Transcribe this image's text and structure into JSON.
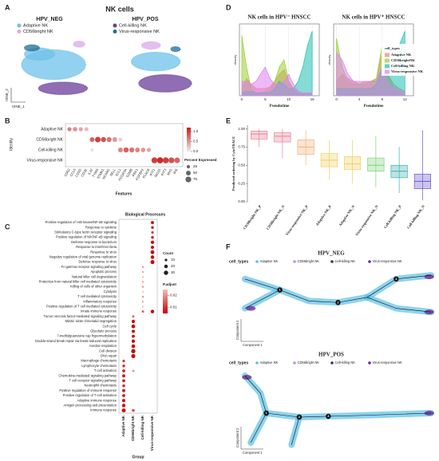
{
  "panel_labels": [
    "A",
    "B",
    "C",
    "D",
    "E",
    "F"
  ],
  "chart_data": [
    {
      "type": "scatter",
      "title": "NK cells",
      "subtitles": [
        "HPV_NEG",
        "HPV_POS"
      ],
      "xlabel": "tSNE_1",
      "ylabel": "tSNE_2",
      "series": [
        {
          "name": "Adaptive NK",
          "color": "#6ec1ea"
        },
        {
          "name": "CD56bright NK",
          "color": "#d9a8ec"
        },
        {
          "name": "Cell-killing NK",
          "color": "#6a3d9a"
        },
        {
          "name": "Virus-responsive NK",
          "color": "#1f6f92"
        }
      ],
      "xlim": [
        0,
        100
      ],
      "ylim": [
        0,
        100
      ],
      "clusters": [
        {
          "panel": 0,
          "series": 0,
          "x": 45,
          "y": 55,
          "rx": 34,
          "ry": 24
        },
        {
          "panel": 0,
          "series": 0,
          "x": 30,
          "y": 72,
          "rx": 16,
          "ry": 10
        },
        {
          "panel": 0,
          "series": 1,
          "x": 72,
          "y": 88,
          "rx": 6,
          "ry": 5
        },
        {
          "panel": 0,
          "series": 2,
          "x": 55,
          "y": 17,
          "rx": 26,
          "ry": 10
        },
        {
          "panel": 0,
          "series": 3,
          "x": 22,
          "y": 82,
          "rx": 8,
          "ry": 5
        },
        {
          "panel": 1,
          "series": 0,
          "x": 45,
          "y": 60,
          "rx": 26,
          "ry": 15
        },
        {
          "panel": 1,
          "series": 1,
          "x": 40,
          "y": 86,
          "rx": 10,
          "ry": 6
        },
        {
          "panel": 1,
          "series": 2,
          "x": 55,
          "y": 25,
          "rx": 28,
          "ry": 14
        },
        {
          "panel": 1,
          "series": 3,
          "x": 66,
          "y": 80,
          "rx": 5,
          "ry": 4
        }
      ]
    },
    {
      "type": "dot",
      "ylabel": "Identity",
      "xlabel": "Features",
      "rows": [
        "Adaptive NK",
        "CD56bright NK",
        "Cell-killing NK",
        "Virus-responsive NK"
      ],
      "features": [
        "CD52",
        "CCL5",
        "CD3D",
        "CD3E",
        "IL32",
        "TYMS",
        "STMN1",
        "NCAM1",
        "SELL",
        "XCL1",
        "FCGR3A",
        "GZMB",
        "PRF1",
        "FGFBP2",
        "PLAC8",
        "IFIT1",
        "ISG15",
        "IFIT3",
        "MX1",
        "IFI6"
      ],
      "points": [
        [
          0,
          0,
          40,
          0.6
        ],
        [
          0,
          1,
          45,
          0.5
        ],
        [
          0,
          2,
          40,
          0.4
        ],
        [
          0,
          3,
          35,
          0.3
        ],
        [
          1,
          4,
          50,
          0.8
        ],
        [
          1,
          5,
          70,
          1.0
        ],
        [
          1,
          6,
          60,
          0.9
        ],
        [
          1,
          7,
          55,
          0.7
        ],
        [
          1,
          8,
          50,
          0.5
        ],
        [
          1,
          9,
          30,
          0.2
        ],
        [
          2,
          4,
          20,
          0.1
        ],
        [
          2,
          9,
          50,
          0.6
        ],
        [
          2,
          10,
          60,
          0.8
        ],
        [
          2,
          11,
          55,
          0.7
        ],
        [
          2,
          12,
          50,
          0.6
        ],
        [
          2,
          13,
          45,
          0.5
        ],
        [
          2,
          14,
          40,
          0.4
        ],
        [
          3,
          15,
          80,
          1.0
        ],
        [
          3,
          16,
          85,
          1.1
        ],
        [
          3,
          17,
          80,
          1.0
        ],
        [
          3,
          18,
          75,
          0.9
        ],
        [
          3,
          19,
          70,
          0.8
        ]
      ],
      "colors": [
        "#eeeeee",
        "#cc1a1a"
      ],
      "clim": [
        0,
        1.2
      ],
      "colorbar_ticks": [
        {
          "value": 0,
          "label": "0.0"
        },
        0.5,
        {
          "value": 1,
          "label": "1.0"
        }
      ],
      "size_legend_title": "Percent Expressed",
      "size_ticks": [
        25,
        50,
        75
      ]
    },
    {
      "type": "dot",
      "title": "Biological Processes",
      "xlabel": "Group",
      "groups": [
        "Adaptive NK",
        "CD56bright NK",
        "Cell-killing NK",
        "Virus-responsive NK"
      ],
      "processes": [
        "Positive regulation of I-κB kinase/NF-κB signaling",
        "Response to cytokine",
        "Stimulatory C-type lectin receptor signaling",
        "Positive regulation of NIK/NF-κB signaling",
        "Defense response to bacterium",
        "Response to interferon-beta",
        "Response to virus",
        "Negative regulation of viral genome replication",
        "Defense response to virus",
        "Fc-gamma receptor signaling pathway",
        "Apoptotic process",
        "Natural killer cell degranulation",
        "Protection from natural killer cell mediated cytotoxicity",
        "Killing of cells of other organism",
        "Cytolysis",
        "T cell mediated cytotoxicity",
        "Inflammatory response",
        "Positive regulation of T cell mediated cytotoxicity",
        "Innate immune response",
        "Tumor necrosis factor-mediated signaling pathway",
        "Mitotic sister chromatid segregation",
        "Cell cycle",
        "Glycolytic process",
        "7-methylguanosine cap hypermethylation",
        "Double-strand break repair via break-induced replication",
        "Aerobic respiration",
        "Cell division",
        "DNA repair",
        "Macrophage chemotaxis",
        "Lymphocyte chemotaxis",
        "T cell activation",
        "Chemokine-mediated signaling pathway",
        "T cell receptor signaling pathway",
        "Neutrophil chemotaxis",
        "Positive regulation of immune response",
        "Positive regulation of T cell activation",
        "Adaptive immune response",
        "Antigen processing and presentation",
        "Immune response"
      ],
      "points": [
        [
          0,
          3,
          15,
          0.006
        ],
        [
          1,
          3,
          12,
          0.008
        ],
        [
          2,
          3,
          10,
          0.01
        ],
        [
          3,
          3,
          12,
          0.008
        ],
        [
          4,
          3,
          18,
          0.006
        ],
        [
          5,
          3,
          16,
          0.006
        ],
        [
          6,
          3,
          22,
          0.005
        ],
        [
          7,
          3,
          20,
          0.005
        ],
        [
          8,
          3,
          25,
          0.005
        ],
        [
          9,
          2,
          6,
          0.02
        ],
        [
          10,
          2,
          5,
          0.022
        ],
        [
          11,
          2,
          4,
          0.024
        ],
        [
          12,
          2,
          5,
          0.022
        ],
        [
          13,
          2,
          6,
          0.02
        ],
        [
          14,
          2,
          4,
          0.024
        ],
        [
          15,
          2,
          6,
          0.02
        ],
        [
          16,
          2,
          5,
          0.022
        ],
        [
          17,
          2,
          4,
          0.024
        ],
        [
          18,
          2,
          8,
          0.015
        ],
        [
          18,
          3,
          20,
          0.005
        ],
        [
          19,
          1,
          8,
          0.015
        ],
        [
          20,
          1,
          18,
          0.005
        ],
        [
          21,
          1,
          22,
          0.005
        ],
        [
          22,
          1,
          16,
          0.006
        ],
        [
          23,
          1,
          14,
          0.006
        ],
        [
          24,
          1,
          18,
          0.005
        ],
        [
          25,
          1,
          20,
          0.005
        ],
        [
          26,
          1,
          28,
          0.005
        ],
        [
          27,
          1,
          26,
          0.005
        ],
        [
          30,
          1,
          8,
          0.02
        ],
        [
          38,
          1,
          12,
          0.012
        ],
        [
          28,
          0,
          10,
          0.01
        ],
        [
          29,
          0,
          12,
          0.009
        ],
        [
          30,
          0,
          14,
          0.008
        ],
        [
          31,
          0,
          16,
          0.008
        ],
        [
          32,
          0,
          14,
          0.008
        ],
        [
          33,
          0,
          12,
          0.009
        ],
        [
          34,
          0,
          16,
          0.008
        ],
        [
          35,
          0,
          14,
          0.008
        ],
        [
          36,
          0,
          18,
          0.007
        ],
        [
          37,
          0,
          20,
          0.007
        ],
        [
          38,
          0,
          24,
          0.006
        ]
      ],
      "colors": [
        "#cc0000",
        "#f6baba"
      ],
      "clim": [
        0.005,
        0.025
      ],
      "size_legend_title": "Count",
      "size_ticks": [
        10,
        20,
        30
      ],
      "color_legend_title": "P.adjust",
      "colorbar_ticks": [
        0.02,
        0.01
      ]
    },
    {
      "type": "area",
      "title": "NK cells in HPV⁻ HNSCC",
      "xlabel": "Pseudotime",
      "ylabel": "density",
      "x": [
        0,
        1,
        2,
        3,
        4,
        5,
        6,
        7,
        8,
        9,
        10,
        11,
        12,
        13,
        14,
        15
      ],
      "xlim": [
        -0.5,
        16.5
      ],
      "ylim": [
        0,
        0.5
      ],
      "xticks": [
        0,
        5,
        10,
        15
      ],
      "grid": true,
      "series": [
        {
          "color": "#f08080",
          "values": [
            0.05,
            0.12,
            0.08,
            0.05,
            0.05,
            0.05,
            0.06,
            0.1,
            0.15,
            0.18,
            0.1,
            0.05,
            0.03,
            0.02,
            0.02,
            0.01
          ]
        },
        {
          "color": "#9acd32",
          "values": [
            0.42,
            0.2,
            0.05,
            0.02,
            0.02,
            0.03,
            0.05,
            0.1,
            0.2,
            0.25,
            0.1,
            0.03,
            0.01,
            0.01,
            0.01,
            0.01
          ]
        },
        {
          "color": "#20c0b0",
          "values": [
            0.02,
            0.03,
            0.03,
            0.02,
            0.02,
            0.02,
            0.02,
            0.05,
            0.1,
            0.08,
            0.05,
            0.05,
            0.1,
            0.2,
            0.35,
            0.45
          ]
        },
        {
          "color": "#e080f0",
          "values": [
            0.1,
            0.1,
            0.08,
            0.1,
            0.15,
            0.2,
            0.12,
            0.08,
            0.08,
            0.1,
            0.15,
            0.08,
            0.03,
            0.02,
            0.02,
            0.02
          ]
        }
      ]
    },
    {
      "type": "area",
      "title": "NK cells in HPV⁺ HNSCC",
      "xlabel": "Pseudotime",
      "ylabel": "density",
      "x": [
        0,
        1,
        2,
        3,
        4,
        5,
        6,
        7,
        8,
        9,
        10,
        11,
        12
      ],
      "xlim": [
        -0.5,
        13.5
      ],
      "ylim": [
        0,
        0.5
      ],
      "xticks": [
        0,
        4,
        8,
        12
      ],
      "grid": true,
      "legend_title": "cell_types",
      "series": [
        {
          "name": "Adaptive NK",
          "color": "#f08080",
          "values": [
            0.1,
            0.15,
            0.12,
            0.1,
            0.08,
            0.08,
            0.1,
            0.12,
            0.3,
            0.15,
            0.08,
            0.05,
            0.03
          ]
        },
        {
          "name": "CD56brightNK",
          "color": "#9acd32",
          "values": [
            0.4,
            0.2,
            0.1,
            0.08,
            0.08,
            0.1,
            0.1,
            0.12,
            0.35,
            0.15,
            0.05,
            0.03,
            0.02
          ]
        },
        {
          "name": "Cell-killing NK",
          "color": "#20c0b0",
          "values": [
            0.05,
            0.05,
            0.05,
            0.05,
            0.05,
            0.05,
            0.05,
            0.08,
            0.2,
            0.15,
            0.2,
            0.35,
            0.45
          ]
        },
        {
          "name": "Virus-responsive NK",
          "color": "#e080f0",
          "values": [
            0.3,
            0.25,
            0.15,
            0.1,
            0.1,
            0.1,
            0.1,
            0.1,
            0.2,
            0.1,
            0.05,
            0.03,
            0.02
          ]
        }
      ]
    },
    {
      "type": "box",
      "ylabel": "Predicted ordering by CytoTRACE",
      "categories": [
        "CD56bright NK_P",
        "CD56bright NK_N",
        "Virus-responsive NK_P",
        "Adaptive NK_P",
        "Adaptive NK_N",
        "Virus-responsive NK_N",
        "Cell-killing NK_P",
        "Cell-killing NK_N"
      ],
      "boxes": [
        {
          "min": 0.75,
          "q1": 0.86,
          "median": 0.93,
          "q3": 0.97,
          "max": 1.0
        },
        {
          "min": 0.6,
          "q1": 0.82,
          "median": 0.9,
          "q3": 0.95,
          "max": 1.0
        },
        {
          "min": 0.5,
          "q1": 0.65,
          "median": 0.75,
          "q3": 0.85,
          "max": 0.98
        },
        {
          "min": 0.3,
          "q1": 0.48,
          "median": 0.57,
          "q3": 0.66,
          "max": 0.85
        },
        {
          "min": 0.25,
          "q1": 0.44,
          "median": 0.52,
          "q3": 0.62,
          "max": 0.85
        },
        {
          "min": 0.2,
          "q1": 0.42,
          "median": 0.5,
          "q3": 0.6,
          "max": 0.9
        },
        {
          "min": 0.12,
          "q1": 0.33,
          "median": 0.42,
          "q3": 0.5,
          "max": 0.75
        },
        {
          "min": 0.02,
          "q1": 0.18,
          "median": 0.28,
          "q3": 0.38,
          "max": 0.98
        }
      ],
      "colors": [
        "#e8849c",
        "#e8849c",
        "#f3b37a",
        "#f0d060",
        "#f0d060",
        "#7fd37f",
        "#3bb3b0",
        "#6a5acd"
      ],
      "ylim": [
        0,
        1.05
      ],
      "yticks": [
        {
          "value": 0,
          "label": "0.00"
        },
        0.25,
        {
          "value": 0.5,
          "label": "0.50"
        },
        0.75,
        {
          "value": 1,
          "label": "1.00"
        }
      ]
    },
    {
      "type": "trajectory",
      "xlabel": "Component 1",
      "ylabel": "Component 2",
      "legend_title": "cell_types",
      "series": [
        {
          "name": "Adaptive NK",
          "color": "#5bc0e8"
        },
        {
          "name": "CD56bright NK",
          "color": "#c48fe0"
        },
        {
          "name": "Cell-killing NK",
          "color": "#333366"
        },
        {
          "name": "Virus-responsive NK",
          "color": "#6a2c91"
        }
      ],
      "plots": [
        {
          "title": "HPV_NEG",
          "branch_labels": [
            "1",
            "2",
            "3"
          ]
        },
        {
          "title": "HPV_POS",
          "branch_labels": [
            "1",
            "2",
            "3"
          ]
        }
      ]
    }
  ]
}
